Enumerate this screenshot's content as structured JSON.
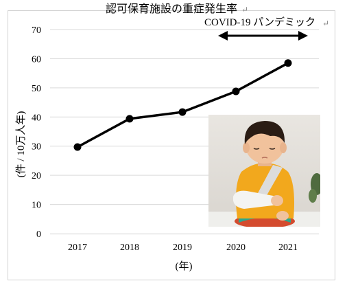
{
  "chart_data": {
    "type": "line",
    "title": "認可保育施設の重症発生率",
    "xlabel": "(年)",
    "ylabel": "(件 / 10万人年)",
    "categories": [
      "2017",
      "2018",
      "2019",
      "2020",
      "2021"
    ],
    "series": [
      {
        "values": [
          29.7,
          39.4,
          41.7,
          48.8,
          58.5
        ]
      }
    ],
    "ylim": [
      0,
      70
    ],
    "yticks": [
      "0",
      "10",
      "20",
      "30",
      "40",
      "50",
      "60",
      "70"
    ],
    "grid": true,
    "legend": "none",
    "annotation": {
      "text": "COVID-19 パンデミック",
      "span": [
        "2020",
        "2021"
      ]
    },
    "line_color": "#000000",
    "grid_color": "#d9d9d9"
  },
  "photo": {
    "subject": "child-with-arm-cast"
  }
}
